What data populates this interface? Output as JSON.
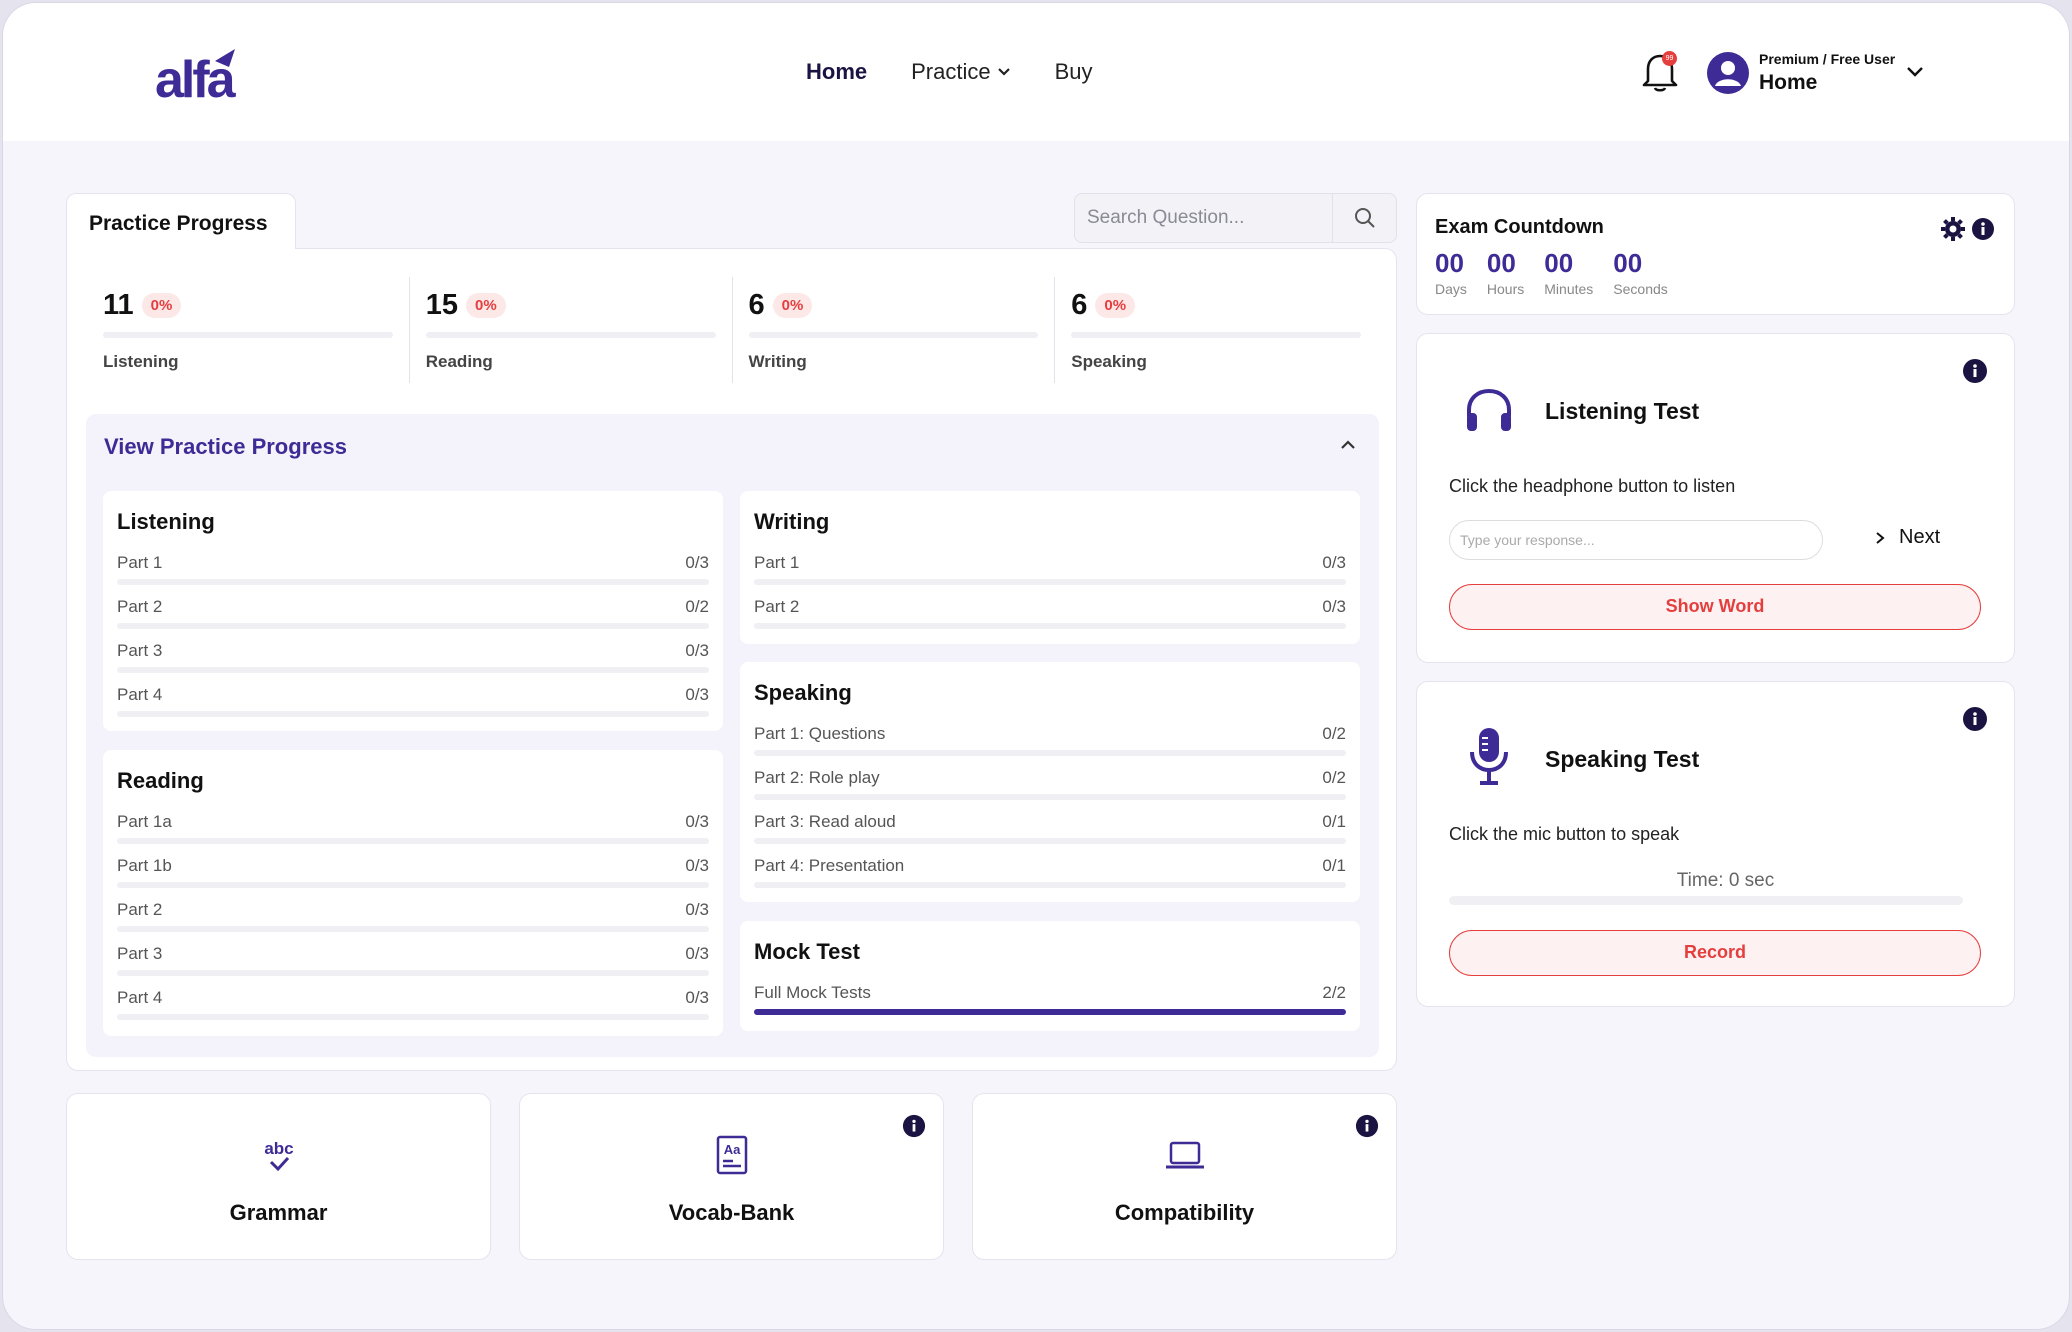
{
  "header": {
    "logo_text": "alfa",
    "nav": [
      {
        "label": "Home"
      },
      {
        "label": "Practice"
      },
      {
        "label": "Buy"
      }
    ],
    "notification_count": "99",
    "user_role": "Premium / Free User",
    "user_name": "Home"
  },
  "practice": {
    "tab_title": "Practice Progress",
    "search_placeholder": "Search Question...",
    "stats": [
      {
        "num": "11",
        "pct": "0%",
        "label": "Listening"
      },
      {
        "num": "15",
        "pct": "0%",
        "label": "Reading"
      },
      {
        "num": "6",
        "pct": "0%",
        "label": "Writing"
      },
      {
        "num": "6",
        "pct": "0%",
        "label": "Speaking"
      }
    ],
    "view_title": "View Practice Progress",
    "listening": {
      "title": "Listening",
      "rows": [
        {
          "label": "Part 1",
          "value": "0/3",
          "fill": 0
        },
        {
          "label": "Part 2",
          "value": "0/2",
          "fill": 0
        },
        {
          "label": "Part 3",
          "value": "0/3",
          "fill": 0
        },
        {
          "label": "Part 4",
          "value": "0/3",
          "fill": 0
        }
      ]
    },
    "reading": {
      "title": "Reading",
      "rows": [
        {
          "label": "Part 1a",
          "value": "0/3",
          "fill": 0
        },
        {
          "label": "Part 1b",
          "value": "0/3",
          "fill": 0
        },
        {
          "label": "Part 2",
          "value": "0/3",
          "fill": 0
        },
        {
          "label": "Part 3",
          "value": "0/3",
          "fill": 0
        },
        {
          "label": "Part 4",
          "value": "0/3",
          "fill": 0
        }
      ]
    },
    "writing": {
      "title": "Writing",
      "rows": [
        {
          "label": "Part 1",
          "value": "0/3",
          "fill": 0
        },
        {
          "label": "Part 2",
          "value": "0/3",
          "fill": 0
        }
      ]
    },
    "speaking": {
      "title": "Speaking",
      "rows": [
        {
          "label": "Part 1: Questions",
          "value": "0/2",
          "fill": 0
        },
        {
          "label": "Part 2: Role play",
          "value": "0/2",
          "fill": 0
        },
        {
          "label": "Part 3: Read aloud",
          "value": "0/1",
          "fill": 0
        },
        {
          "label": "Part 4: Presentation",
          "value": "0/1",
          "fill": 0
        }
      ]
    },
    "mock": {
      "title": "Mock Test",
      "rows": [
        {
          "label": "Full Mock Tests",
          "value": "2/2",
          "fill": 1
        }
      ]
    }
  },
  "countdown": {
    "title": "Exam Countdown",
    "cells": [
      {
        "value": "00",
        "label": "Days"
      },
      {
        "value": "00",
        "label": "Hours"
      },
      {
        "value": "00",
        "label": "Minutes"
      },
      {
        "value": "00",
        "label": "Seconds"
      }
    ]
  },
  "listening_test": {
    "title": "Listening Test",
    "description": "Click the headphone button to listen",
    "input_placeholder": "Type your response...",
    "next_label": "Next",
    "show_word_label": "Show Word"
  },
  "speaking_test": {
    "title": "Speaking Test",
    "description": "Click the mic button to speak",
    "time_text": "Time: 0 sec",
    "record_label": "Record"
  },
  "bottom_cards": [
    {
      "label": "Grammar",
      "icon": "abc-check-icon"
    },
    {
      "label": "Vocab-Bank",
      "icon": "dictionary-icon"
    },
    {
      "label": "Compatibility",
      "icon": "laptop-icon"
    }
  ],
  "colors": {
    "primary": "#3e2b96",
    "danger": "#e53e3e",
    "background": "#f6f5fc"
  }
}
